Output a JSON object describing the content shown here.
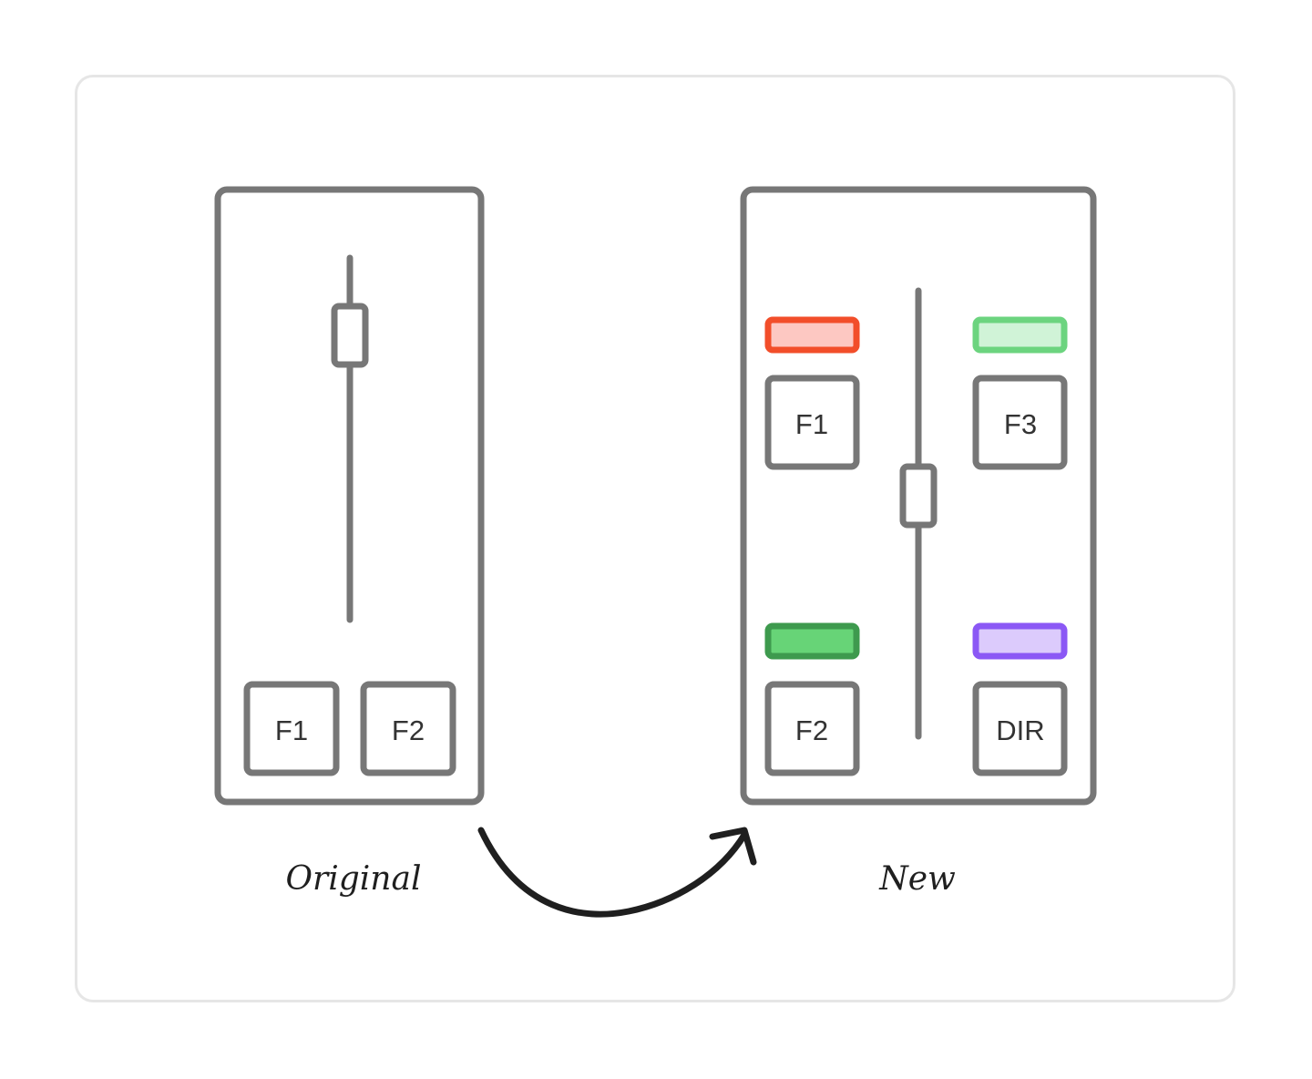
{
  "colors": {
    "outline": "#777777",
    "arrow": "#1f1f1f",
    "card_border": "#e6e6e6",
    "red_indicator_stroke": "#f24e2a",
    "red_indicator_fill": "#fdc8c2",
    "light_green_indicator_stroke": "#6cd47f",
    "light_green_indicator_fill": "#d0f3d7",
    "green_indicator_stroke": "#3e9a4e",
    "green_indicator_fill": "#67d477",
    "purple_indicator_stroke": "#8b58f5",
    "purple_indicator_fill": "#dccbfc"
  },
  "original": {
    "caption": "Original",
    "keys": [
      "F1",
      "F2"
    ]
  },
  "new": {
    "caption": "New",
    "keys": [
      "F1",
      "F3",
      "F2",
      "DIR"
    ]
  }
}
